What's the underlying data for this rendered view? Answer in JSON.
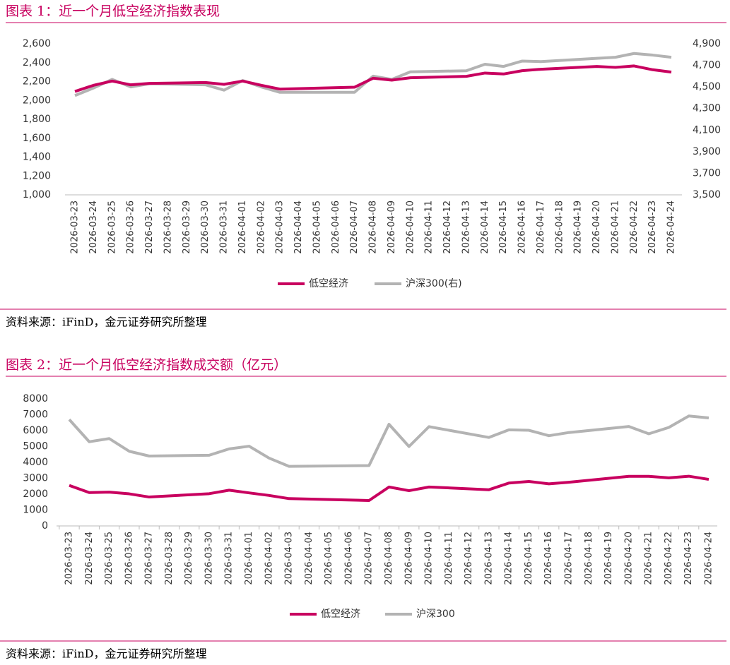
{
  "chart_data": [
    {
      "type": "line",
      "title": "图表 1：近一个月低空经济指数表现",
      "source": "资料来源：iFinD，金元证券研究所整理",
      "categories": [
        "2026-03-23",
        "2026-03-24",
        "2026-03-25",
        "2026-03-26",
        "2026-03-27",
        "2026-03-28",
        "2026-03-29",
        "2026-03-30",
        "2026-03-31",
        "2026-04-01",
        "2026-04-02",
        "2026-04-03",
        "2026-04-04",
        "2026-04-05",
        "2026-04-06",
        "2026-04-07",
        "2026-04-08",
        "2026-04-09",
        "2026-04-10",
        "2026-04-11",
        "2026-04-12",
        "2026-04-13",
        "2026-04-14",
        "2026-04-15",
        "2026-04-16",
        "2026-04-17",
        "2026-04-18",
        "2026-04-19",
        "2026-04-20",
        "2026-04-21",
        "2026-04-22",
        "2026-04-23",
        "2026-04-24"
      ],
      "x": [
        "2026-03-23",
        "2026-03-24",
        "2026-03-25",
        "2026-03-26",
        "2026-03-27",
        "2026-03-30",
        "2026-03-31",
        "2026-04-01",
        "2026-04-02",
        "2026-04-03",
        "2026-04-07",
        "2026-04-08",
        "2026-04-09",
        "2026-04-10",
        "2026-04-13",
        "2026-04-14",
        "2026-04-15",
        "2026-04-16",
        "2026-04-17",
        "2026-04-20",
        "2026-04-21",
        "2026-04-22",
        "2026-04-23",
        "2026-04-24"
      ],
      "series": [
        {
          "name": "低空经济",
          "color": "#c8005f",
          "values": [
            2095,
            2160,
            2205,
            2165,
            2180,
            2190,
            2170,
            2205,
            2160,
            2120,
            2140,
            2235,
            2215,
            2240,
            2255,
            2290,
            2280,
            2315,
            2330,
            2360,
            2350,
            2365,
            2325,
            2300
          ]
        },
        {
          "name": "沪深300(右)",
          "color": "#b3b3b3",
          "axis": "y2",
          "values": [
            4420,
            4490,
            4570,
            4500,
            4530,
            4520,
            4470,
            4560,
            4500,
            4450,
            4450,
            4600,
            4570,
            4640,
            4650,
            4710,
            4690,
            4740,
            4735,
            4765,
            4775,
            4810,
            4795,
            4775
          ]
        }
      ],
      "ylim": [
        1000,
        2600
      ],
      "yticks": [
        {
          "value": 1000,
          "label": "1,000"
        },
        {
          "value": 1200,
          "label": "1,200"
        },
        {
          "value": 1400,
          "label": "1,400"
        },
        {
          "value": 1600,
          "label": "1,600"
        },
        {
          "value": 1800,
          "label": "1,800"
        },
        {
          "value": 2000,
          "label": "2,000"
        },
        {
          "value": 2200,
          "label": "2,200"
        },
        {
          "value": 2400,
          "label": "2,400"
        },
        {
          "value": 2600,
          "label": "2,600"
        }
      ],
      "y2lim": [
        3500,
        4900
      ],
      "y2ticks": [
        {
          "value": 3500,
          "label": "3,500"
        },
        {
          "value": 3700,
          "label": "3,700"
        },
        {
          "value": 3900,
          "label": "3,900"
        },
        {
          "value": 4100,
          "label": "4,100"
        },
        {
          "value": 4300,
          "label": "4,300"
        },
        {
          "value": 4500,
          "label": "4,500"
        },
        {
          "value": 4700,
          "label": "4,700"
        },
        {
          "value": 4900,
          "label": "4,900"
        }
      ],
      "legend": "bottom"
    },
    {
      "type": "line",
      "title": "图表 2：近一个月低空经济指数成交额（亿元）",
      "source": "资料来源：iFinD，金元证券研究所整理",
      "categories": [
        "2026-03-23",
        "2026-03-24",
        "2026-03-25",
        "2026-03-26",
        "2026-03-27",
        "2026-03-28",
        "2026-03-29",
        "2026-03-30",
        "2026-03-31",
        "2026-04-01",
        "2026-04-02",
        "2026-04-03",
        "2026-04-04",
        "2026-04-05",
        "2026-04-06",
        "2026-04-07",
        "2026-04-08",
        "2026-04-09",
        "2026-04-10",
        "2026-04-11",
        "2026-04-12",
        "2026-04-13",
        "2026-04-14",
        "2026-04-15",
        "2026-04-16",
        "2026-04-17",
        "2026-04-18",
        "2026-04-19",
        "2026-04-20",
        "2026-04-21",
        "2026-04-22",
        "2026-04-23",
        "2026-04-24"
      ],
      "x": [
        "2026-03-23",
        "2026-03-24",
        "2026-03-25",
        "2026-03-26",
        "2026-03-27",
        "2026-03-30",
        "2026-03-31",
        "2026-04-01",
        "2026-04-02",
        "2026-04-03",
        "2026-04-07",
        "2026-04-08",
        "2026-04-09",
        "2026-04-10",
        "2026-04-13",
        "2026-04-14",
        "2026-04-15",
        "2026-04-16",
        "2026-04-17",
        "2026-04-20",
        "2026-04-21",
        "2026-04-22",
        "2026-04-23",
        "2026-04-24"
      ],
      "series": [
        {
          "name": "低空经济",
          "color": "#c8005f",
          "values": [
            2550,
            2100,
            2130,
            2020,
            1820,
            2030,
            2250,
            2080,
            1920,
            1720,
            1600,
            2450,
            2220,
            2450,
            2280,
            2700,
            2800,
            2650,
            2750,
            3120,
            3120,
            3030,
            3130,
            2930
          ]
        },
        {
          "name": "沪深300",
          "color": "#b3b3b3",
          "values": [
            6700,
            5300,
            5500,
            4700,
            4400,
            4450,
            4850,
            5020,
            4270,
            3750,
            3800,
            6400,
            5000,
            6250,
            5570,
            6050,
            6020,
            5680,
            5880,
            6260,
            5800,
            6200,
            6920,
            6800
          ]
        }
      ],
      "ylim": [
        0,
        8000
      ],
      "yticks": [
        0,
        1000,
        2000,
        3000,
        4000,
        5000,
        6000,
        7000,
        8000
      ],
      "legend": "bottom"
    }
  ]
}
